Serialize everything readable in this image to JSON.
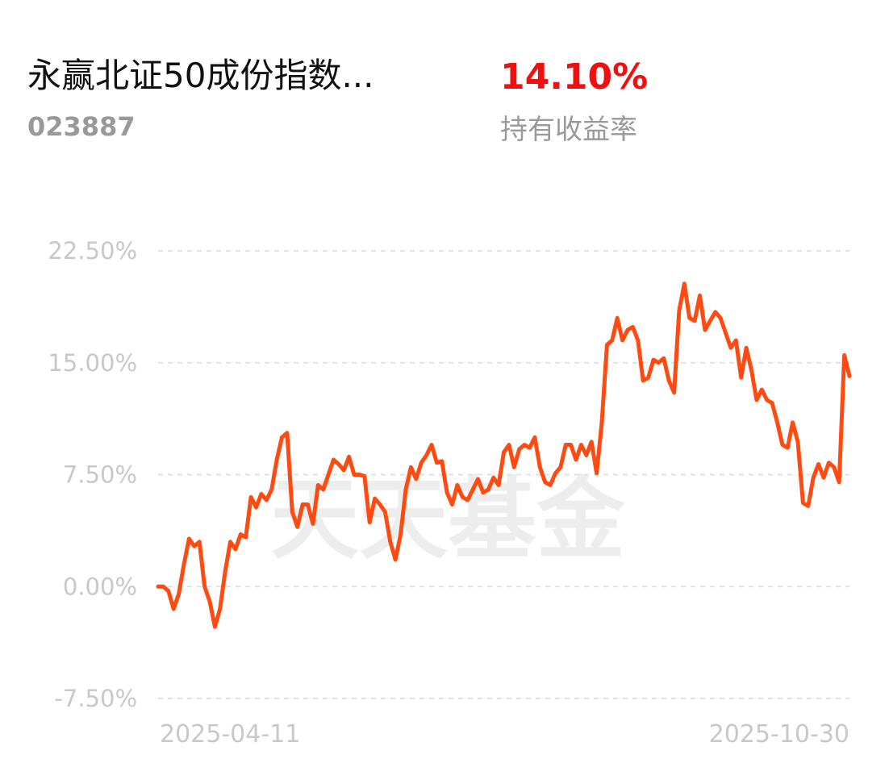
{
  "header": {
    "title": "永赢北证50成份指数...",
    "code": "023887",
    "return_value": "14.10%",
    "return_label": "持有收益率"
  },
  "chart_data": {
    "type": "line",
    "watermark": "天天基金",
    "color": "#ff4a12",
    "grid": true,
    "categories": [
      "2025-04-11",
      null,
      null,
      null,
      null,
      null,
      null,
      null,
      null,
      null,
      null,
      null,
      null,
      null,
      null,
      null,
      null,
      null,
      null,
      null,
      null,
      null,
      null,
      null,
      null,
      null,
      null,
      null,
      null,
      null,
      null,
      null,
      null,
      null,
      null,
      null,
      null,
      null,
      null,
      null,
      null,
      null,
      null,
      null,
      null,
      null,
      null,
      null,
      null,
      null,
      null,
      null,
      null,
      null,
      null,
      null,
      null,
      null,
      null,
      null,
      null,
      null,
      null,
      null,
      null,
      null,
      null,
      null,
      null,
      null,
      null,
      null,
      null,
      null,
      null,
      null,
      null,
      null,
      null,
      null,
      null,
      null,
      null,
      null,
      null,
      null,
      null,
      null,
      null,
      null,
      null,
      null,
      null,
      null,
      null,
      null,
      null,
      null,
      null,
      null,
      null,
      null,
      null,
      null,
      null,
      null,
      null,
      null,
      null,
      null,
      null,
      null,
      null,
      null,
      null,
      null,
      null,
      null,
      null,
      null,
      null,
      null,
      null,
      null,
      null,
      null,
      null,
      null,
      null,
      null,
      null,
      null,
      null,
      null,
      "2025-10-30"
    ],
    "values": [
      0,
      0,
      -0.3,
      -1.5,
      -0.5,
      1.5,
      3.2,
      2.7,
      3.0,
      0,
      -1,
      -2.7,
      -1.5,
      1.0,
      3.0,
      2.5,
      3.5,
      3.3,
      6.0,
      5.3,
      6.2,
      5.8,
      6.5,
      8.5,
      10.0,
      10.3,
      5.0,
      4.0,
      5.5,
      5.5,
      4.2,
      6.8,
      6.5,
      7.5,
      8.5,
      8.2,
      7.8,
      8.7,
      7.5,
      7.5,
      7.4,
      4.3,
      5.9,
      5.5,
      5.0,
      3.0,
      1.8,
      3.5,
      6.5,
      8.0,
      7.2,
      8.3,
      8.8,
      9.5,
      8.3,
      8.4,
      6.3,
      5.5,
      6.8,
      6.0,
      5.8,
      6.5,
      7.2,
      6.3,
      6.5,
      7.3,
      6.8,
      9.0,
      9.5,
      8.0,
      9.2,
      9.5,
      9.3,
      10.0,
      8.0,
      7.0,
      6.8,
      7.6,
      8.0,
      9.5,
      9.5,
      8.5,
      9.5,
      8.8,
      9.7,
      7.6,
      11.0,
      16.2,
      16.5,
      18.0,
      16.5,
      17.2,
      17.4,
      16.5,
      13.8,
      14.0,
      15.2,
      15.0,
      15.3,
      13.8,
      13.0,
      18.5,
      20.3,
      18.0,
      17.8,
      19.5,
      17.2,
      17.8,
      18.4,
      18.0,
      17.0,
      16.0,
      16.5,
      14.0,
      16.0,
      14.5,
      12.5,
      13.2,
      12.5,
      12.3,
      11.0,
      9.5,
      9.3,
      11.0,
      9.7,
      5.6,
      5.4,
      7.3,
      8.2,
      7.3,
      8.3,
      8.0,
      7.0,
      15.5,
      14.1
    ],
    "ylim": [
      -7.5,
      22.5
    ],
    "yticks": [
      {
        "value": 22.5,
        "label": "22.50%"
      },
      {
        "value": 15,
        "label": "15.00%"
      },
      {
        "value": 7.5,
        "label": "7.50%"
      },
      {
        "value": 0,
        "label": "0.00%"
      },
      {
        "value": -7.5,
        "label": "-7.50%"
      }
    ]
  }
}
